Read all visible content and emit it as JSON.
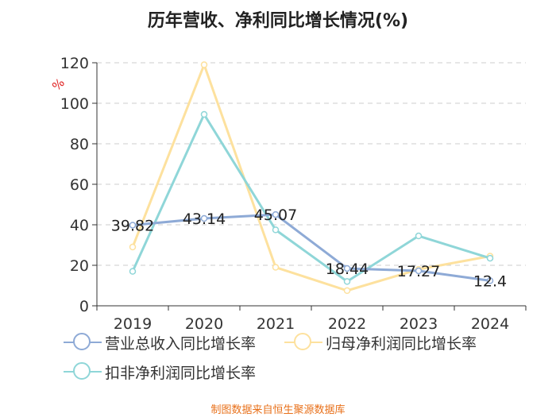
{
  "chart_data": {
    "type": "line",
    "title": "历年营收、净利同比增长情况(%)",
    "ylabel": "%",
    "xlabel": "",
    "categories": [
      "2019",
      "2020",
      "2021",
      "2022",
      "2023",
      "2024"
    ],
    "ylim": [
      0,
      120
    ],
    "yticks": [
      0,
      20,
      40,
      60,
      80,
      100,
      120
    ],
    "grid": true,
    "legend_position": "bottom-left",
    "series": [
      {
        "name": "营业总收入同比增长率",
        "color": "#8eaad6",
        "values": [
          39.82,
          43.14,
          45.07,
          18.44,
          17.27,
          12.4
        ],
        "labels": [
          "39.82",
          "43.14",
          "45.07",
          "18.44",
          "17.27",
          "12.4"
        ]
      },
      {
        "name": "归母净利润同比增长率",
        "color": "#fde19e",
        "values": [
          29.0,
          119.0,
          19.0,
          7.5,
          18.0,
          24.5
        ],
        "labels": []
      },
      {
        "name": "扣非净利润同比增长率",
        "color": "#8fd6d8",
        "values": [
          17.0,
          94.5,
          37.5,
          12.0,
          34.5,
          23.5
        ],
        "labels": []
      }
    ]
  },
  "source": "制图数据来自恒生聚源数据库",
  "colors": {
    "axis": "#333333",
    "grid": "#cccccc",
    "unit": "#e02020",
    "source": "#e8701a"
  }
}
